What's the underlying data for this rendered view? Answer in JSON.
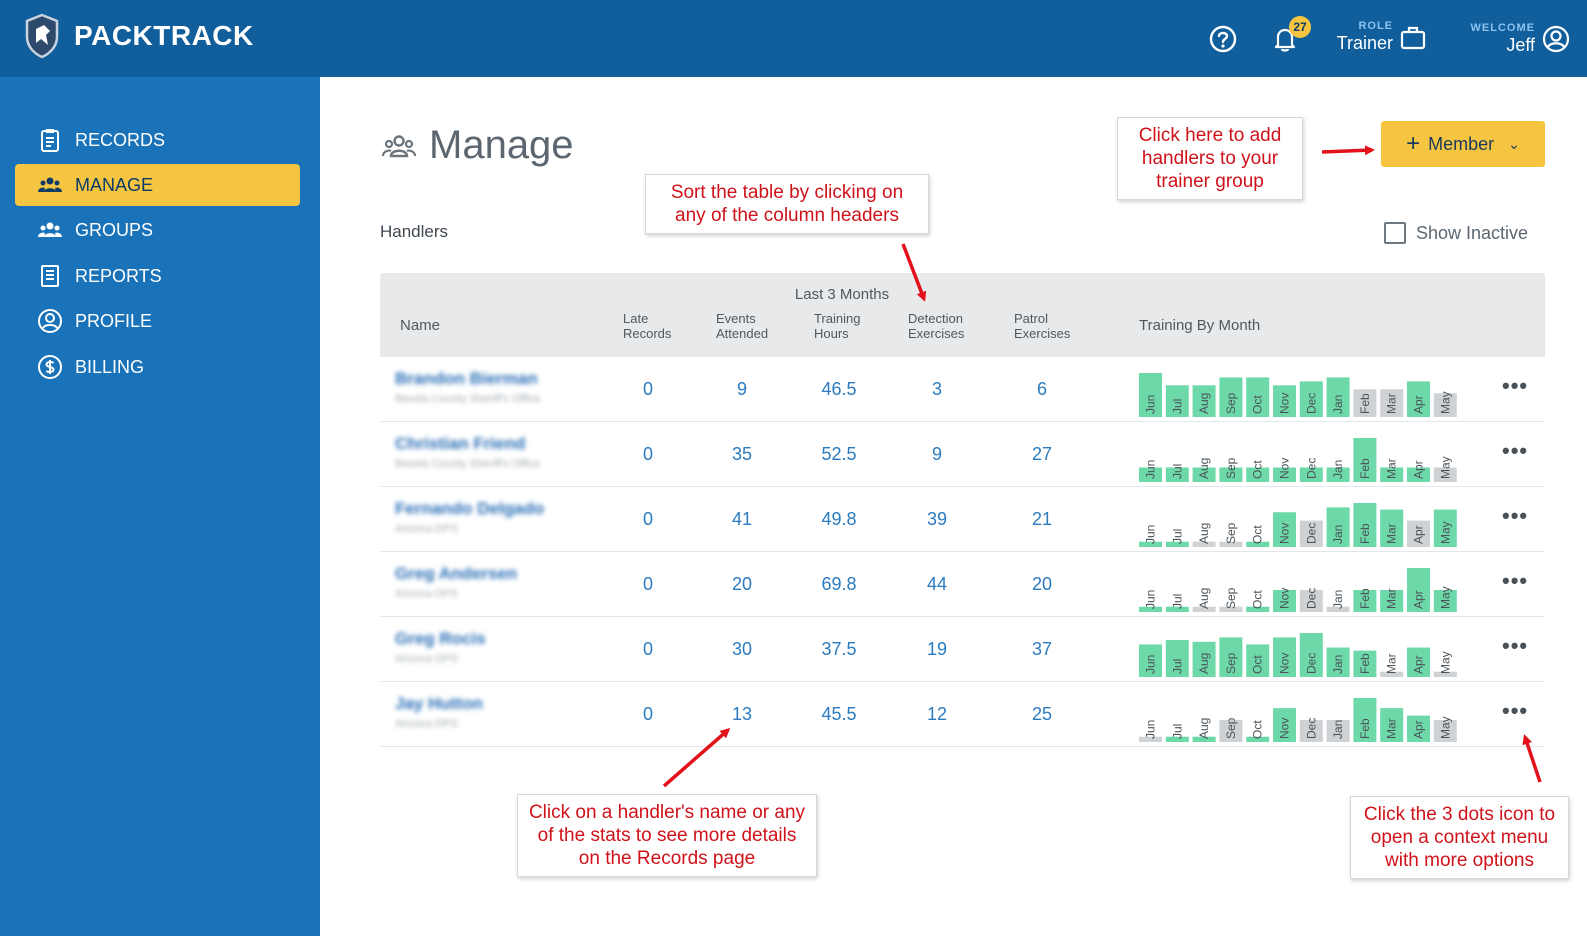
{
  "topbar": {
    "app_name": "PACKTRACK",
    "notification_count": "27",
    "role_label": "ROLE",
    "role_value": "Trainer",
    "welcome_label": "WELCOME",
    "user_name": "Jeff",
    "icons": [
      "shield-logo-icon",
      "help-icon",
      "bell-icon",
      "briefcase-icon",
      "user-icon"
    ]
  },
  "sidebar": {
    "items": [
      {
        "label": "RECORDS",
        "icon": "clipboard-icon"
      },
      {
        "label": "MANAGE",
        "icon": "people-icon",
        "active": true
      },
      {
        "label": "GROUPS",
        "icon": "group-icon"
      },
      {
        "label": "REPORTS",
        "icon": "report-icon"
      },
      {
        "label": "PROFILE",
        "icon": "profile-icon"
      },
      {
        "label": "BILLING",
        "icon": "dollar-icon"
      }
    ]
  },
  "main": {
    "title": "Manage",
    "section_label": "Handlers",
    "member_button": "Member",
    "show_inactive": "Show Inactive"
  },
  "table": {
    "group_header": "Last 3 Months",
    "columns": [
      "Name",
      "Late Records",
      "Events Attended",
      "Training Hours",
      "Detection Exercises",
      "Patrol Exercises",
      "Training By Month"
    ],
    "months": [
      "Jun",
      "Jul",
      "Aug",
      "Sep",
      "Oct",
      "Nov",
      "Dec",
      "Jan",
      "Feb",
      "Mar",
      "Apr",
      "May"
    ],
    "rows": [
      {
        "name": "Brandon Bierman",
        "org": "Bexela County Sheriff's Office",
        "late": "0",
        "events": "9",
        "hours": "46.5",
        "detection": "3",
        "patrol": "6",
        "months": [
          1.0,
          0.72,
          0.72,
          0.9,
          0.9,
          0.72,
          0.81,
          0.9,
          0.63,
          0.63,
          0.81,
          0.54
        ],
        "status": [
          "g",
          "g",
          "g",
          "g",
          "g",
          "g",
          "g",
          "g",
          "x",
          "x",
          "g",
          "x"
        ]
      },
      {
        "name": "Christian Friend",
        "org": "Bexela County Sheriff's Office",
        "late": "0",
        "events": "35",
        "hours": "52.5",
        "detection": "9",
        "patrol": "27",
        "months": [
          0.33,
          0.33,
          0.33,
          0.33,
          0.33,
          0.33,
          0.33,
          0.33,
          1.0,
          0.33,
          0.33,
          0.33
        ],
        "status": [
          "g",
          "g",
          "g",
          "g",
          "g",
          "g",
          "g",
          "g",
          "g",
          "g",
          "g",
          "x"
        ]
      },
      {
        "name": "Fernando Delgado",
        "org": "Arizona DPS",
        "late": "0",
        "events": "41",
        "hours": "49.8",
        "detection": "39",
        "patrol": "21",
        "months": [
          0.12,
          0.12,
          0.12,
          0.12,
          0.12,
          0.79,
          0.6,
          0.9,
          1.0,
          0.85,
          0.6,
          0.85
        ],
        "status": [
          "g",
          "g",
          "x",
          "x",
          "g",
          "g",
          "x",
          "g",
          "g",
          "g",
          "x",
          "g"
        ]
      },
      {
        "name": "Greg Andersen",
        "org": "Arizona DPS",
        "late": "0",
        "events": "20",
        "hours": "69.8",
        "detection": "44",
        "patrol": "20",
        "months": [
          0.12,
          0.12,
          0.12,
          0.12,
          0.12,
          0.5,
          0.5,
          0.12,
          0.5,
          0.5,
          1.0,
          0.5
        ],
        "status": [
          "g",
          "g",
          "x",
          "x",
          "g",
          "g",
          "x",
          "x",
          "g",
          "g",
          "g",
          "g"
        ]
      },
      {
        "name": "Greg Rocis",
        "org": "Arizona DPS",
        "late": "0",
        "events": "30",
        "hours": "37.5",
        "detection": "19",
        "patrol": "37",
        "months": [
          0.74,
          0.84,
          0.8,
          0.9,
          0.74,
          0.9,
          1.0,
          0.67,
          0.6,
          0.12,
          0.67,
          0.12
        ],
        "status": [
          "g",
          "g",
          "g",
          "g",
          "g",
          "g",
          "g",
          "g",
          "g",
          "x",
          "g",
          "x"
        ]
      },
      {
        "name": "Jay Hutton",
        "org": "Arizona DPS",
        "late": "0",
        "events": "13",
        "hours": "45.5",
        "detection": "12",
        "patrol": "25",
        "months": [
          0.12,
          0.12,
          0.12,
          0.5,
          0.12,
          0.77,
          0.5,
          0.5,
          1.0,
          0.77,
          0.6,
          0.5
        ],
        "status": [
          "x",
          "g",
          "g",
          "x",
          "g",
          "g",
          "x",
          "x",
          "g",
          "g",
          "g",
          "x"
        ]
      }
    ],
    "row_menu_icon": "more-dots-icon",
    "colors": {
      "bar_green": "#6dd8a8",
      "bar_grey": "#cfd2d5"
    }
  },
  "callouts": {
    "sort": "Sort the table by clicking on any of the column headers",
    "add_member": "Click here to add handlers to your trainer group",
    "handler_click": "Click on a handler's name or any of the stats to see more details on the Records page",
    "dots": "Click the 3 dots icon to open a context menu with more options"
  }
}
